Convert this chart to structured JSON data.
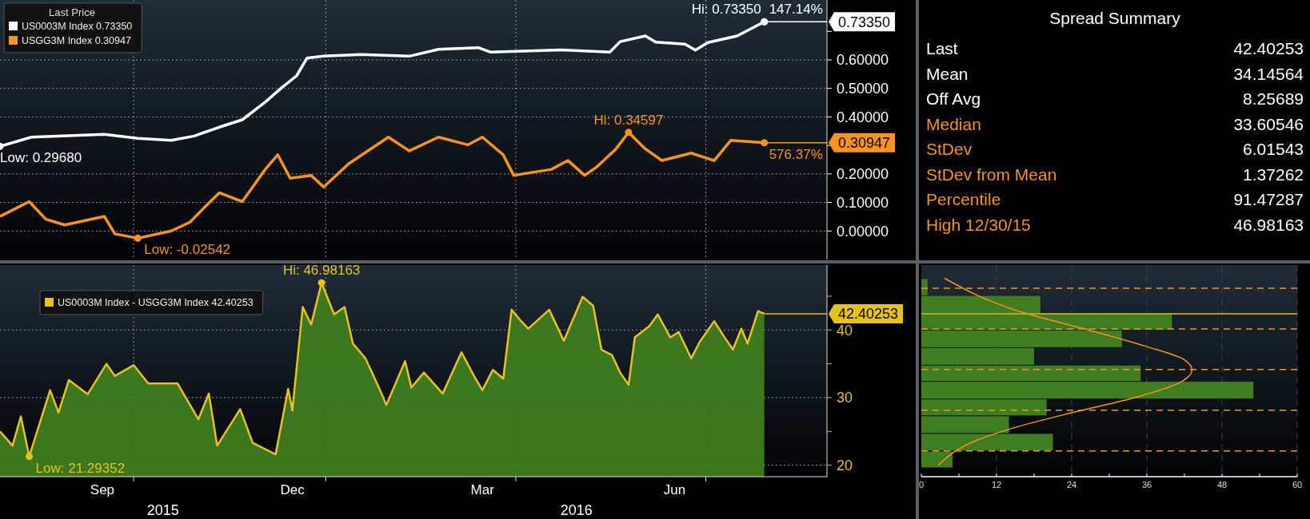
{
  "chart_data": [
    {
      "type": "line",
      "legend_title": "Last Price",
      "legend": "top left",
      "grid": true,
      "tick_labels": "y",
      "xlim": [
        "2015-07-29",
        "2016-08-28"
      ],
      "xticks": [
        {
          "value": "2015-10-01",
          "label": null
        },
        {
          "value": "2016-01-01",
          "label": null
        },
        {
          "value": "2016-04-01",
          "label": null
        },
        {
          "value": "2016-07-01",
          "label": null
        }
      ],
      "ylim": [
        -0.1,
        0.81
      ],
      "yticks": [
        {
          "value": 0,
          "label": "0.00000"
        },
        {
          "value": 0.1,
          "label": "0.10000"
        },
        {
          "value": 0.2,
          "label": "0.20000"
        },
        {
          "value": 0.3,
          "label": null
        },
        {
          "value": 0.4,
          "label": "0.40000"
        },
        {
          "value": 0.5,
          "label": "0.50000"
        },
        {
          "value": 0.6,
          "label": "0.60000"
        },
        {
          "value": 0.7,
          "label": null
        }
      ],
      "series": [
        {
          "name": "US0003M Index 0.73350",
          "color": "#ffffff",
          "x": [
            "2015-07-29",
            "2015-08-13",
            "2015-09-17",
            "2015-10-03",
            "2015-10-19",
            "2015-10-30",
            "2015-11-11",
            "2015-11-22",
            "2015-12-03",
            "2015-12-11",
            "2015-12-18",
            "2015-12-23",
            "2015-12-31",
            "2016-01-18",
            "2016-02-10",
            "2016-02-24",
            "2016-03-14",
            "2016-03-20",
            "2016-04-23",
            "2016-05-16",
            "2016-05-21",
            "2016-06-02",
            "2016-06-07",
            "2016-06-21",
            "2016-06-26",
            "2016-07-02",
            "2016-07-16",
            "2016-07-29"
          ],
          "values": [
            0.2968,
            0.329,
            0.339,
            0.325,
            0.318,
            0.333,
            0.364,
            0.39,
            0.452,
            0.503,
            0.544,
            0.606,
            0.613,
            0.619,
            0.613,
            0.637,
            0.643,
            0.627,
            0.635,
            0.627,
            0.664,
            0.684,
            0.662,
            0.655,
            0.634,
            0.661,
            0.684,
            0.7335
          ]
        },
        {
          "name": "USGG3M Index 0.30947",
          "color": "#f7931e",
          "x": [
            "2015-07-29",
            "2015-08-12",
            "2015-08-20",
            "2015-08-29",
            "2015-09-17",
            "2015-09-22",
            "2015-10-03",
            "2015-10-19",
            "2015-10-28",
            "2015-11-03",
            "2015-11-11",
            "2015-11-22",
            "2015-12-03",
            "2015-12-09",
            "2015-12-15",
            "2015-12-25",
            "2015-12-31",
            "2016-01-12",
            "2016-01-31",
            "2016-02-10",
            "2016-02-24",
            "2016-03-09",
            "2016-03-16",
            "2016-03-26",
            "2016-03-31",
            "2016-04-18",
            "2016-04-26",
            "2016-05-04",
            "2016-05-10",
            "2016-05-19",
            "2016-05-25",
            "2016-06-02",
            "2016-06-10",
            "2016-06-24",
            "2016-07-05",
            "2016-07-13",
            "2016-07-29"
          ],
          "values": [
            0.051,
            0.103,
            0.041,
            0.021,
            0.051,
            -0.01,
            -0.02542,
            0.0,
            0.031,
            0.076,
            0.134,
            0.103,
            0.216,
            0.267,
            0.185,
            0.195,
            0.154,
            0.236,
            0.329,
            0.281,
            0.329,
            0.302,
            0.329,
            0.267,
            0.195,
            0.216,
            0.247,
            0.195,
            0.226,
            0.288,
            0.34597,
            0.288,
            0.247,
            0.273,
            0.247,
            0.318,
            0.30947
          ]
        }
      ],
      "annotations": [
        {
          "text": "Hi: 0.73350",
          "x": "2016-07-29",
          "y": 0.7335
        },
        {
          "text": "147.14%",
          "x": "2016-07-29",
          "y": 0.7335
        },
        {
          "text": "Low: 0.29680",
          "x": "2015-07-29",
          "y": 0.2968
        },
        {
          "text": "Hi: 0.34597",
          "x": "2016-05-25",
          "y": 0.34597
        },
        {
          "text": "Low: -0.02542",
          "x": "2015-10-03",
          "y": -0.02542
        },
        {
          "text": "576.37%",
          "x": "2016-07-29",
          "y": 0.30947
        },
        "0.73350",
        "0.30947"
      ]
    },
    {
      "type": "other",
      "title": "Spread Summary",
      "data_labels": true,
      "categories": [
        "Last",
        "Mean",
        "Off Avg",
        "Median",
        "StDev",
        "StDev from Mean",
        "Percentile",
        "High 12/30/15"
      ],
      "values": [
        42.40253,
        34.14564,
        8.25689,
        33.60546,
        6.01543,
        1.37262,
        91.47287,
        46.98163
      ],
      "colors": [
        "#ffffff",
        "#ffffff",
        "#ffffff",
        "#f7931e",
        "#f7931e",
        "#f7931e",
        "#f7931e",
        "#f7931e"
      ]
    },
    {
      "type": "area",
      "legend": "top left",
      "grid": true,
      "xlim": [
        "2015-07-29",
        "2016-08-28"
      ],
      "xticks": [
        {
          "value": "2015-10-01",
          "label": null
        },
        {
          "value": "2016-01-01",
          "label": null
        },
        {
          "value": "2016-04-01",
          "label": null
        },
        {
          "value": "2016-07-01",
          "label": null
        },
        {
          "value": "2015-09-16",
          "label": "Sep"
        },
        {
          "value": "2015-12-16",
          "label": "Dec"
        },
        {
          "value": "2016-03-16",
          "label": "Mar"
        },
        {
          "value": "2016-06-16",
          "label": "Jun"
        }
      ],
      "ylim": [
        18.3,
        49.6
      ],
      "yticks": [
        20,
        {
          "value": 25,
          "label": null
        },
        30,
        {
          "value": 35,
          "label": null
        },
        40,
        {
          "value": 45,
          "label": null
        }
      ],
      "series": [
        {
          "name": "US0003M Index - USGG3M Index 42.40253",
          "color": "#e8c21a",
          "x": [
            "2015-07-29",
            "2015-08-04",
            "2015-08-08",
            "2015-08-12",
            "2015-08-22",
            "2015-08-26",
            "2015-08-31",
            "2015-09-09",
            "2015-09-18",
            "2015-09-22",
            "2015-10-01",
            "2015-10-08",
            "2015-10-22",
            "2015-11-01",
            "2015-11-06",
            "2015-11-10",
            "2015-11-21",
            "2015-11-27",
            "2015-12-08",
            "2015-12-14",
            "2015-12-16",
            "2015-12-21",
            "2015-12-25",
            "2015-12-30",
            "2016-01-05",
            "2016-01-10",
            "2016-01-14",
            "2016-01-20",
            "2016-01-27",
            "2016-01-30",
            "2016-02-08",
            "2016-02-11",
            "2016-02-17",
            "2016-02-26",
            "2016-03-06",
            "2016-03-12",
            "2016-03-16",
            "2016-03-21",
            "2016-03-26",
            "2016-03-30",
            "2016-04-03",
            "2016-04-07",
            "2016-04-17",
            "2016-04-24",
            "2016-05-03",
            "2016-05-08",
            "2016-05-12",
            "2016-05-17",
            "2016-05-21",
            "2016-05-25",
            "2016-05-28",
            "2016-06-04",
            "2016-06-08",
            "2016-06-14",
            "2016-06-18",
            "2016-06-24",
            "2016-06-28",
            "2016-07-05",
            "2016-07-10",
            "2016-07-14",
            "2016-07-18",
            "2016-07-21",
            "2016-07-26",
            "2016-07-29"
          ],
          "values": [
            25.0,
            22.9,
            27.2,
            21.29352,
            31.1,
            27.8,
            32.6,
            30.5,
            35.0,
            33.2,
            34.8,
            32.1,
            32.1,
            26.8,
            30.6,
            22.9,
            28.3,
            23.3,
            21.6,
            31.3,
            28.1,
            43.4,
            40.8,
            46.98163,
            42.3,
            43.4,
            38.0,
            35.8,
            31.1,
            28.9,
            35.4,
            31.5,
            33.7,
            30.6,
            36.7,
            33.2,
            31.1,
            34.1,
            32.8,
            43.0,
            41.5,
            40.2,
            43.0,
            38.4,
            44.9,
            43.6,
            37.1,
            36.3,
            33.7,
            31.9,
            38.9,
            40.6,
            42.3,
            38.9,
            39.7,
            35.8,
            38.2,
            41.3,
            38.9,
            37.1,
            40.2,
            38.0,
            42.8,
            42.40253
          ]
        }
      ],
      "annotations": [
        {
          "text": "Hi: 46.98163",
          "x": "2015-12-30",
          "y": 46.98163
        },
        {
          "text": "Low: 21.29352",
          "x": "2015-08-12",
          "y": 21.29352
        },
        "42.40253",
        "2015",
        "2016"
      ]
    },
    {
      "type": "histogram",
      "orientation": "horizontal",
      "grid": "x",
      "tick_labels": "x",
      "color": "#3f7d20",
      "bins": [
        19.6,
        22.1,
        24.7,
        27.3,
        29.8,
        32.4,
        34.8,
        37.4,
        40.0,
        42.4,
        45.1,
        47.6
      ],
      "values": [
        5,
        21,
        14,
        20,
        53,
        35,
        18,
        32,
        40,
        19,
        1
      ],
      "xlim": [
        0,
        60
      ],
      "xticks": [
        0,
        {
          "value": 6,
          "label": null
        },
        12,
        {
          "value": 18,
          "label": null
        },
        24,
        {
          "value": 30,
          "label": null
        },
        36,
        {
          "value": 42,
          "label": null
        },
        48,
        {
          "value": 54,
          "label": null
        },
        60
      ],
      "ylim": [
        18.3,
        49.6
      ],
      "ref_lines": [
        {
          "axis": "y",
          "value": 42.40253,
          "color": "#e8c21a"
        },
        {
          "axis": "y",
          "value": 46.18,
          "color": "#f7931e",
          "line_style": "dashed"
        },
        {
          "axis": "y",
          "value": 40.16,
          "color": "#f7931e",
          "line_style": "dashed"
        },
        {
          "axis": "y",
          "value": 34.15,
          "color": "#f7931e",
          "line_style": "dashed"
        },
        {
          "axis": "y",
          "value": 28.13,
          "color": "#f7931e",
          "line_style": "dashed"
        },
        {
          "axis": "y",
          "value": 22.11,
          "color": "#f7931e",
          "line_style": "dashed"
        }
      ],
      "series": [
        {
          "type": "line",
          "color": "#f7931e",
          "x": [
            47.65,
            42.42,
            40.2,
            37.6,
            35.6,
            34.1,
            32.4,
            29.9,
            27.8,
            25.4,
            23.7,
            20.0
          ],
          "values": [
            3.7,
            16.8,
            25.9,
            35.8,
            42.0,
            43.2,
            41.6,
            33.7,
            24.2,
            14.3,
            8.9,
            2.7
          ]
        }
      ]
    }
  ]
}
